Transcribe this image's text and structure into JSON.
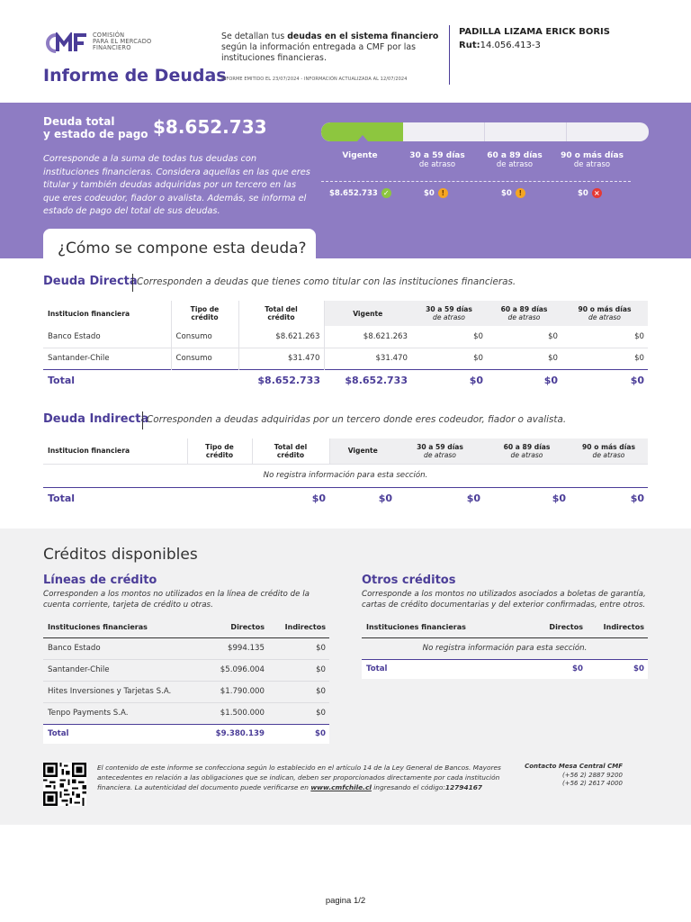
{
  "brand": {
    "logo_text_1": "COMISIÓN",
    "logo_text_2": "PARA EL MERCADO",
    "logo_text_3": "FINANCIERO",
    "accent": "#4b3d98",
    "band_color": "#8e7cc3",
    "ok_color": "#8dc63f"
  },
  "header": {
    "title": "Informe de Deudas",
    "intro_pre": "Se detallan tus ",
    "intro_bold": "deudas en el sistema financiero",
    "intro_post": " según la información entregada a CMF por las instituciones financieras.",
    "emitted": "INFORME EMITIDO EL 23/07/2024 - INFORMACIÓN ACTUALIZADA AL 12/07/2024",
    "person_name": "PADILLA LIZAMA ERICK BORIS",
    "rut_label": "Rut:",
    "rut_value": "14.056.413-3"
  },
  "summary": {
    "label_1": "Deuda total",
    "label_2": "y estado de pago",
    "amount": "$8.652.733",
    "description": "Corresponde a la suma de todas tus deudas con instituciones financieras. Considera aquellas en las que eres titular y también deudas adquiridas por un tercero en las que eres codeudor, fiador o avalista. Además, se informa el estado de pago del total de sus deudas.",
    "vigente_share": 0.25,
    "columns": [
      {
        "head": "Vigente",
        "sub": "",
        "value": "$8.652.733",
        "status": "ok",
        "status_icon": "check-icon"
      },
      {
        "head": "30 a 59 días",
        "sub": "de atraso",
        "value": "$0",
        "status": "warn",
        "status_icon": "warning-icon"
      },
      {
        "head": "60 a 89 días",
        "sub": "de atraso",
        "value": "$0",
        "status": "warn",
        "status_icon": "warning-icon"
      },
      {
        "head": "90 o más días",
        "sub": "de atraso",
        "value": "$0",
        "status": "bad",
        "status_icon": "x-icon"
      }
    ],
    "tab_label": "¿Cómo se compone esta deuda?"
  },
  "direct": {
    "title": "Deuda Directa",
    "subtitle": "Corresponden a deudas que tienes como titular con las instituciones financieras.",
    "headers": {
      "institution": "Institucion financiera",
      "type_1": "Tipo de",
      "type_2": "crédito",
      "total_1": "Total del",
      "total_2": "crédito",
      "vigente": "Vigente",
      "d30": "30 a 59 días",
      "d60": "60 a 89 días",
      "d90": "90 o más días",
      "atraso": "de atraso"
    },
    "rows": [
      {
        "institution": "Banco Estado",
        "type": "Consumo",
        "total": "$8.621.263",
        "vigente": "$8.621.263",
        "d30": "$0",
        "d60": "$0",
        "d90": "$0"
      },
      {
        "institution": "Santander-Chile",
        "type": "Consumo",
        "total": "$31.470",
        "vigente": "$31.470",
        "d30": "$0",
        "d60": "$0",
        "d90": "$0"
      }
    ],
    "total": {
      "label": "Total",
      "total": "$8.652.733",
      "vigente": "$8.652.733",
      "d30": "$0",
      "d60": "$0",
      "d90": "$0"
    }
  },
  "indirect": {
    "title": "Deuda Indirecta",
    "subtitle": "Corresponden a deudas adquiridas por un tercero donde eres codeudor, fiador o avalista.",
    "no_info": "No registra información para esta sección.",
    "total": {
      "label": "Total",
      "total": "$0",
      "vigente": "$0",
      "d30": "$0",
      "d60": "$0",
      "d90": "$0"
    }
  },
  "credits": {
    "title": "Créditos disponibles",
    "lines": {
      "title": "Líneas de crédito",
      "desc": "Corresponden a los montos no utilizados en la línea de crédito de la cuenta corriente, tarjeta de crédito u otras.",
      "headers": {
        "institution": "Instituciones financieras",
        "direct": "Directos",
        "indirect": "Indirectos"
      },
      "rows": [
        {
          "institution": "Banco Estado",
          "direct": "$994.135",
          "indirect": "$0"
        },
        {
          "institution": "Santander-Chile",
          "direct": "$5.096.004",
          "indirect": "$0"
        },
        {
          "institution": "Hites Inversiones y Tarjetas S.A.",
          "direct": "$1.790.000",
          "indirect": "$0"
        },
        {
          "institution": "Tenpo Payments S.A.",
          "direct": "$1.500.000",
          "indirect": "$0"
        }
      ],
      "total": {
        "label": "Total",
        "direct": "$9.380.139",
        "indirect": "$0"
      }
    },
    "others": {
      "title": "Otros créditos",
      "desc": "Corresponde a los montos no utilizados asociados a boletas de garantía, cartas de crédito documentarias y del exterior confirmadas, entre otros.",
      "headers": {
        "institution": "Instituciones financieras",
        "direct": "Directos",
        "indirect": "Indirectos"
      },
      "no_info": "No registra información para esta sección.",
      "total": {
        "label": "Total",
        "direct": "$0",
        "indirect": "$0"
      }
    }
  },
  "footer": {
    "text_pre": "El contenido de este informe se confecciona según lo establecido en el artículo 14 de la Ley General de Bancos. Mayores antecedentes en relación a las obligaciones que se indican, deben ser proporcionados directamente por cada institución financiera. La autenticidad del documento puede verificarse en ",
    "link": "www.cmfchile.cl",
    "text_mid": " ingresando el código:",
    "code": "12794167",
    "contact_title": "Contacto Mesa Central CMF",
    "phone_1": "(+56 2) 2887 9200",
    "phone_2": "(+56 2) 2617 4000",
    "page": "pagina 1/2"
  }
}
